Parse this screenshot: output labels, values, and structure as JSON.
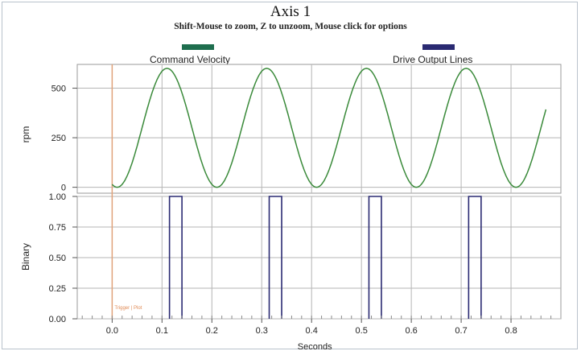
{
  "window": {
    "title": "Axis 1",
    "subtitle": "Shift-Mouse to zoom, Z to unzoom, Mouse click for options"
  },
  "legend": [
    {
      "label": "Command Velocity",
      "color": "#1e6e4e"
    },
    {
      "label": "Drive Output Lines",
      "color": "#2a2a72"
    }
  ],
  "chart_data": [
    {
      "type": "line",
      "title": "",
      "series": [
        {
          "name": "Command Velocity",
          "color": "#3a8a3a"
        }
      ],
      "ylabel": "rpm",
      "yticks": [
        "0",
        "250",
        "500"
      ],
      "ytick_values": [
        0,
        250,
        500
      ],
      "ylim": [
        -30,
        620
      ],
      "xlim": [
        -0.07,
        0.9
      ],
      "sine": {
        "min": 0,
        "max": 600,
        "period": 0.2,
        "first_peak": 0.11,
        "x_start": 0.0,
        "x_end": 0.87
      }
    },
    {
      "type": "line",
      "title": "",
      "series": [
        {
          "name": "Drive Output Lines",
          "color": "#2a2a72"
        }
      ],
      "ylabel": "Binary",
      "yticks": [
        "0.00",
        "0.25",
        "0.50",
        "0.75",
        "1.00"
      ],
      "ytick_values": [
        0,
        0.25,
        0.5,
        0.75,
        1.0
      ],
      "ylim": [
        0,
        1.0
      ],
      "xlim": [
        -0.07,
        0.9
      ],
      "xlabel": "Seconds",
      "xticks": [
        "0.0",
        "0.1",
        "0.2",
        "0.3",
        "0.4",
        "0.5",
        "0.6",
        "0.7",
        "0.8"
      ],
      "xtick_values": [
        0,
        0.1,
        0.2,
        0.3,
        0.4,
        0.5,
        0.6,
        0.7,
        0.8
      ],
      "pulses": [
        {
          "start": 0.115,
          "end": 0.14
        },
        {
          "start": 0.315,
          "end": 0.34
        },
        {
          "start": 0.515,
          "end": 0.54
        },
        {
          "start": 0.715,
          "end": 0.74
        }
      ],
      "trigger_label": "Trigger | Plot",
      "trigger_x": 0.0
    }
  ]
}
